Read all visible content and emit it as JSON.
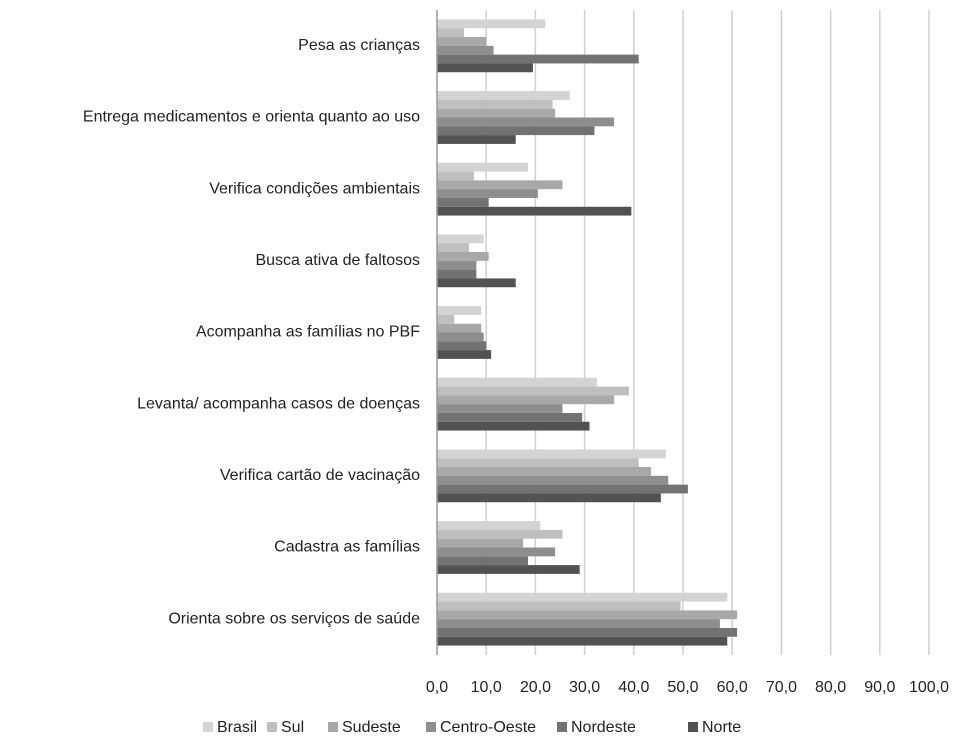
{
  "chart_data": {
    "type": "bar",
    "orientation": "horizontal",
    "categories": [
      "Pesa as crianças",
      "Entrega medicamentos e orienta quanto ao uso",
      "Verifica condições ambientais",
      "Busca ativa de faltosos",
      "Acompanha as famílias no PBF",
      "Levanta/ acompanha casos de doenças",
      "Verifica cartão de vacinação",
      "Cadastra as famílias",
      "Orienta sobre os serviços de saúde"
    ],
    "series": [
      {
        "name": "Brasil",
        "color": "#d3d3d3",
        "values": [
          22,
          27,
          18.5,
          9.5,
          9,
          32.5,
          46.5,
          21,
          59
        ]
      },
      {
        "name": "Sul",
        "color": "#bfbfbf",
        "values": [
          5.5,
          23.5,
          7.5,
          6.5,
          3.5,
          39,
          41,
          25.5,
          49.5
        ]
      },
      {
        "name": "Sudeste",
        "color": "#a8a8a8",
        "values": [
          10,
          24,
          25.5,
          10.5,
          9,
          36,
          43.5,
          17.5,
          61
        ]
      },
      {
        "name": "Centro-Oeste",
        "color": "#8e8e8e",
        "values": [
          11.5,
          36,
          20.5,
          8,
          9.5,
          25.5,
          47,
          24,
          57.5
        ]
      },
      {
        "name": "Nordeste",
        "color": "#727272",
        "values": [
          41,
          32,
          10.5,
          8,
          10,
          29.5,
          51,
          18.5,
          61
        ]
      },
      {
        "name": "Norte",
        "color": "#525252",
        "values": [
          19.5,
          16,
          39.5,
          16,
          11,
          31,
          45.5,
          29,
          59
        ]
      }
    ],
    "xlim": [
      0,
      100
    ],
    "xticks": [
      {
        "value": 0,
        "label": "0,0"
      },
      {
        "value": 10,
        "label": "10,0"
      },
      {
        "value": 20,
        "label": "20,0"
      },
      {
        "value": 30,
        "label": "30,0"
      },
      {
        "value": 40,
        "label": "40,0"
      },
      {
        "value": 50,
        "label": "50,0"
      },
      {
        "value": 60,
        "label": "60,0"
      },
      {
        "value": 70,
        "label": "70,0"
      },
      {
        "value": 80,
        "label": "80,0"
      },
      {
        "value": 90,
        "label": "90,0"
      },
      {
        "value": 100,
        "label": "100,0"
      }
    ],
    "grid": true,
    "legend": "bottom"
  }
}
